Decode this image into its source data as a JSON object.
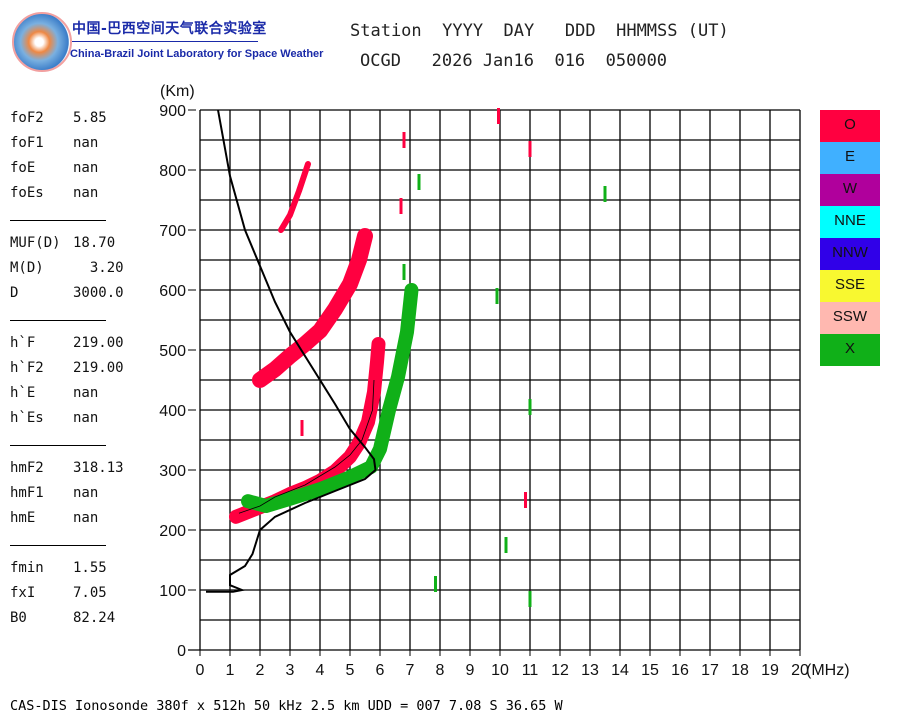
{
  "logo": {
    "cn": "中国-巴西空间天气联合实验室",
    "en": "China-Brazil Joint Laboratory for Space Weather"
  },
  "header": {
    "line1": "Station  YYYY  DAY   DDD  HHMMSS (UT)",
    "line2": "OCGD   2026 Jan16  016  050000"
  },
  "params": [
    [
      {
        "k": "foF2",
        "v": "5.85"
      },
      {
        "k": "foF1",
        "v": "nan"
      },
      {
        "k": "foE",
        "v": "nan"
      },
      {
        "k": "foEs",
        "v": "nan"
      }
    ],
    [
      {
        "k": "MUF(D)",
        "v": "18.70"
      },
      {
        "k": "M(D)",
        "v": "  3.20"
      },
      {
        "k": "D",
        "v": "3000.0"
      }
    ],
    [
      {
        "k": "h`F",
        "v": "219.00"
      },
      {
        "k": "h`F2",
        "v": "219.00"
      },
      {
        "k": "h`E",
        "v": "nan"
      },
      {
        "k": "h`Es",
        "v": "nan"
      }
    ],
    [
      {
        "k": "hmF2",
        "v": "318.13"
      },
      {
        "k": "hmF1",
        "v": "nan"
      },
      {
        "k": "hmE",
        "v": "nan"
      }
    ],
    [
      {
        "k": "fmin",
        "v": "1.55"
      },
      {
        "k": "fxI",
        "v": "7.05"
      },
      {
        "k": "B0",
        "v": "82.24"
      }
    ]
  ],
  "legend": [
    {
      "label": "O",
      "color": "#ff0040"
    },
    {
      "label": "E",
      "color": "#40b0ff"
    },
    {
      "label": "W",
      "color": "#b0009c"
    },
    {
      "label": "NNE",
      "color": "#00ffff"
    },
    {
      "label": "NNW",
      "color": "#3000e8"
    },
    {
      "label": "SSE",
      "color": "#f8f830"
    },
    {
      "label": "SSW",
      "color": "#ffb8b0"
    },
    {
      "label": "X",
      "color": "#10b018"
    }
  ],
  "footer": "CAS-DIS Ionosonde 380f x 512h 50 kHz 2.5 km UDD = 007 7.08 S 36.65 W",
  "chart_data": {
    "type": "scatter",
    "xlabel": "(MHz)",
    "ylabel": "(Km)",
    "xlim": [
      0,
      20
    ],
    "ylim": [
      0,
      900
    ],
    "xticks": [
      "0",
      "1",
      "2",
      "3",
      "4",
      "5",
      "6",
      "7",
      "8",
      "9",
      "10",
      "11",
      "12",
      "13",
      "14",
      "15",
      "16",
      "17",
      "18",
      "19",
      "20"
    ],
    "yticks": [
      "0",
      "100",
      "200",
      "300",
      "400",
      "500",
      "600",
      "700",
      "800",
      "900"
    ],
    "grid": true,
    "series": [
      {
        "name": "O-F2 trace",
        "color": "#ff0040",
        "points": [
          [
            1.2,
            222
          ],
          [
            1.6,
            230
          ],
          [
            2,
            238
          ],
          [
            2.5,
            248
          ],
          [
            3,
            260
          ],
          [
            3.5,
            270
          ],
          [
            4,
            282
          ],
          [
            4.5,
            298
          ],
          [
            5,
            322
          ],
          [
            5.3,
            345
          ],
          [
            5.6,
            380
          ],
          [
            5.8,
            430
          ],
          [
            5.9,
            480
          ],
          [
            5.95,
            510
          ]
        ]
      },
      {
        "name": "X-F2 trace",
        "color": "#10b018",
        "points": [
          [
            1.6,
            248
          ],
          [
            2.2,
            240
          ],
          [
            3,
            252
          ],
          [
            4,
            268
          ],
          [
            5,
            288
          ],
          [
            5.7,
            305
          ],
          [
            6,
            335
          ],
          [
            6.3,
            400
          ],
          [
            6.6,
            455
          ],
          [
            6.9,
            530
          ],
          [
            7.05,
            600
          ]
        ]
      },
      {
        "name": "O-F2 2nd hop",
        "color": "#ff0040",
        "points": [
          [
            2,
            450
          ],
          [
            2.5,
            468
          ],
          [
            3,
            490
          ],
          [
            3.5,
            510
          ],
          [
            4,
            532
          ],
          [
            4.5,
            568
          ],
          [
            5,
            610
          ],
          [
            5.3,
            650
          ],
          [
            5.5,
            690
          ]
        ]
      },
      {
        "name": "O-F2 3rd hop",
        "color": "#ff0040",
        "points": [
          [
            2.7,
            700
          ],
          [
            3,
            725
          ],
          [
            3.3,
            765
          ],
          [
            3.6,
            810
          ]
        ]
      },
      {
        "name": "O spots",
        "color": "#ff0040",
        "points": [
          [
            9.95,
            890
          ],
          [
            11,
            835
          ],
          [
            10.85,
            250
          ],
          [
            6.8,
            850
          ],
          [
            6.7,
            740
          ],
          [
            3.4,
            370
          ]
        ]
      },
      {
        "name": "X spots",
        "color": "#10b018",
        "points": [
          [
            13.5,
            760
          ],
          [
            9.9,
            590
          ],
          [
            11,
            405
          ],
          [
            10.2,
            175
          ],
          [
            7.85,
            110
          ],
          [
            11,
            85
          ],
          [
            7.3,
            780
          ],
          [
            6.8,
            630
          ]
        ]
      }
    ],
    "profile": {
      "name": "electron density profile",
      "color": "#000000",
      "points": [
        [
          0.6,
          900
        ],
        [
          1,
          790
        ],
        [
          1.5,
          700
        ],
        [
          2,
          640
        ],
        [
          2.5,
          580
        ],
        [
          3,
          530
        ],
        [
          3.5,
          490
        ],
        [
          4,
          450
        ],
        [
          4.5,
          410
        ],
        [
          5,
          368
        ],
        [
          5.5,
          338
        ],
        [
          5.8,
          318
        ],
        [
          5.85,
          300
        ],
        [
          5.5,
          285
        ],
        [
          4.5,
          265
        ],
        [
          3.5,
          245
        ],
        [
          2.5,
          222
        ],
        [
          2,
          200
        ],
        [
          1.75,
          160
        ],
        [
          1.5,
          140
        ],
        [
          1,
          125
        ],
        [
          1,
          108
        ],
        [
          1.4,
          100
        ],
        [
          1.1,
          97
        ],
        [
          0.2,
          97
        ]
      ]
    },
    "median": {
      "points": [
        [
          1.3,
          228
        ],
        [
          2,
          240
        ],
        [
          2.5,
          255
        ],
        [
          3,
          265
        ],
        [
          3.5,
          275
        ],
        [
          4,
          290
        ],
        [
          4.5,
          305
        ],
        [
          5,
          325
        ],
        [
          5.4,
          350
        ],
        [
          5.75,
          400
        ],
        [
          5.8,
          450
        ]
      ]
    }
  }
}
